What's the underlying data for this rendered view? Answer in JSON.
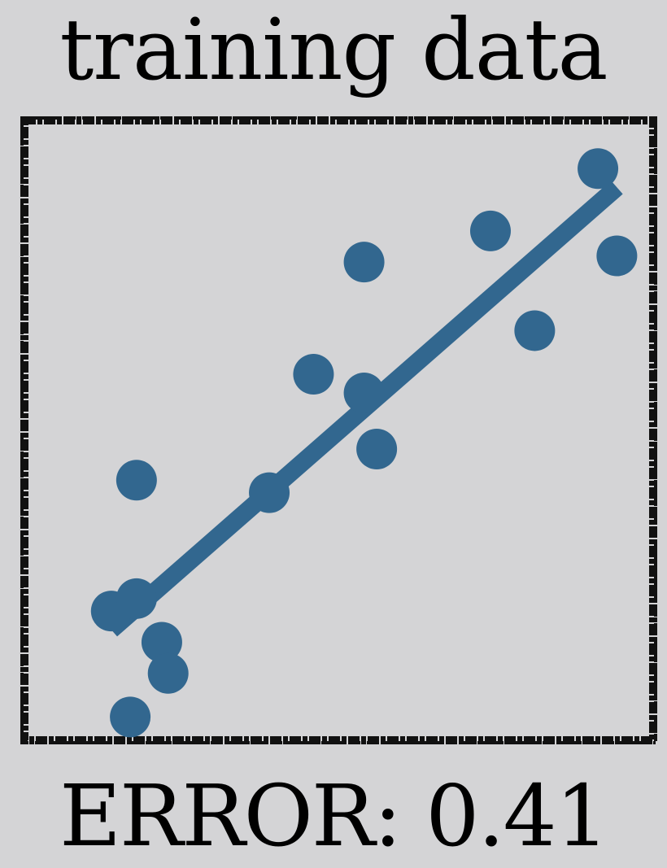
{
  "chart_data": {
    "type": "scatter",
    "title": "training data",
    "xlabel": "",
    "ylabel": "",
    "xlim": [
      0,
      1
    ],
    "ylim": [
      0,
      1
    ],
    "grid": false,
    "points": [
      {
        "x": 0.14,
        "y": 0.21
      },
      {
        "x": 0.18,
        "y": 0.23
      },
      {
        "x": 0.18,
        "y": 0.42
      },
      {
        "x": 0.22,
        "y": 0.16
      },
      {
        "x": 0.23,
        "y": 0.11
      },
      {
        "x": 0.17,
        "y": 0.04
      },
      {
        "x": 0.39,
        "y": 0.4
      },
      {
        "x": 0.46,
        "y": 0.59
      },
      {
        "x": 0.54,
        "y": 0.56
      },
      {
        "x": 0.56,
        "y": 0.47
      },
      {
        "x": 0.54,
        "y": 0.77
      },
      {
        "x": 0.74,
        "y": 0.82
      },
      {
        "x": 0.81,
        "y": 0.66
      },
      {
        "x": 0.91,
        "y": 0.92
      },
      {
        "x": 0.94,
        "y": 0.78
      }
    ],
    "fit_line": {
      "x": [
        0.14,
        0.94
      ],
      "y": [
        0.18,
        0.89
      ]
    },
    "color": "#32678f"
  },
  "footer": {
    "error_text": "ERROR: 0.41"
  },
  "colors": {
    "background": "#d4d4d6",
    "frame": "#111111",
    "marker": "#32678f"
  }
}
